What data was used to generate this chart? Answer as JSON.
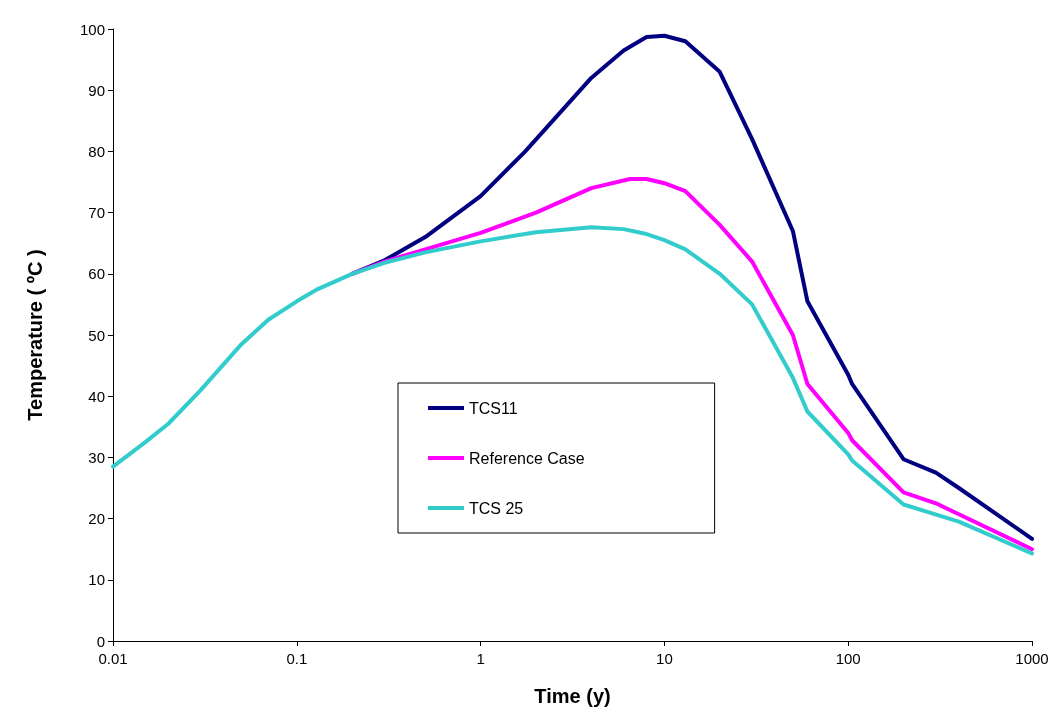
{
  "chart_data": {
    "type": "line",
    "xlabel": "Time (y)",
    "ylabel": "Temperature ( ºC )",
    "log": "x",
    "xlim": [
      0.01,
      1000
    ],
    "xticks": [
      0.01,
      0.1,
      1,
      10,
      100,
      1000
    ],
    "ylim": [
      0,
      100
    ],
    "yticks": [
      0,
      10,
      20,
      30,
      40,
      50,
      60,
      70,
      80,
      90,
      100
    ],
    "grid": false,
    "legend": "center",
    "marker": "none",
    "line_style": "solid",
    "series": [
      {
        "name": "TCS11",
        "color": "#000080",
        "x": [
          0.2,
          0.3,
          0.5,
          1,
          1.75,
          4,
          6,
          8,
          10,
          13,
          20,
          30,
          50,
          60,
          100,
          105,
          200,
          300,
          400,
          1000
        ],
        "values": [
          60,
          62.2,
          66,
          72.7,
          80,
          92,
          96.5,
          98.7,
          98.9,
          98,
          93,
          82,
          67,
          55.5,
          43.5,
          42,
          29.7,
          27.5,
          25,
          16.7
        ]
      },
      {
        "name": "Reference Case",
        "color": "#ff00ff",
        "x": [
          0.2,
          0.3,
          0.5,
          1,
          2,
          4,
          6.5,
          8,
          10,
          13,
          20,
          30,
          50,
          60,
          100,
          105,
          200,
          300,
          400,
          1000
        ],
        "values": [
          60,
          62,
          64,
          66.7,
          70,
          74,
          75.5,
          75.5,
          74.8,
          73.5,
          68,
          62,
          50,
          42,
          34,
          32.8,
          24.3,
          22.5,
          20.7,
          15
        ]
      },
      {
        "name": "TCS 25",
        "color": "#33cccc",
        "x": [
          0.01,
          0.015,
          0.02,
          0.03,
          0.05,
          0.07,
          0.1,
          0.13,
          0.2,
          0.3,
          0.5,
          1,
          2,
          4,
          6,
          8,
          10,
          13,
          20,
          30,
          50,
          60,
          100,
          105,
          200,
          400,
          1000
        ],
        "values": [
          28.5,
          32.5,
          35.5,
          41,
          48.5,
          52.5,
          55.5,
          57.5,
          60,
          61.8,
          63.5,
          65.3,
          66.8,
          67.6,
          67.3,
          66.5,
          65.5,
          64,
          60,
          55,
          43,
          37.5,
          30.5,
          29.5,
          22.3,
          19.5,
          14.3
        ]
      }
    ]
  }
}
